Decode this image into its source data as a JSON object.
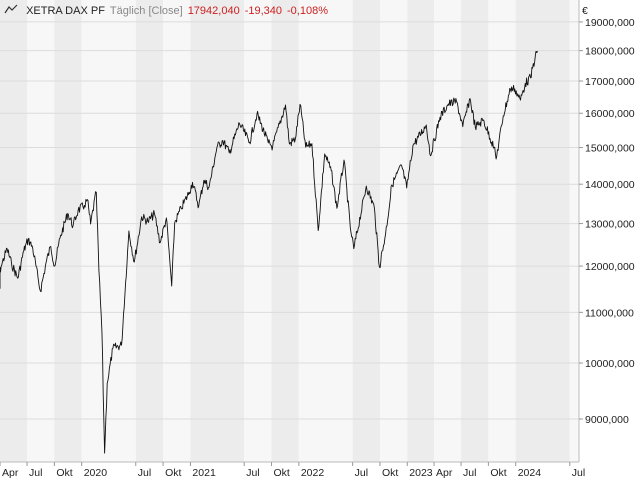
{
  "header": {
    "instrument": "XETRA DAX PF",
    "interval": "Täglich [Close]",
    "last": "17942,040",
    "change": "-19,340",
    "change_pct": "-0,108%"
  },
  "colors": {
    "line": "#111111",
    "negative": "#cc1f1f",
    "band_light": "#f7f7f7",
    "band_dark": "#ececec",
    "grid": "#dcdcdc",
    "axis_text": "#222222",
    "muted_text": "#888888"
  },
  "icons": {
    "chart_type": "line-chart-icon"
  },
  "chart_data": {
    "type": "line",
    "title": "XETRA DAX PF",
    "currency": "€",
    "y_scale": "log",
    "ylim": [
      8300,
      19800
    ],
    "xlim": [
      "2019-04-01",
      "2024-08-01"
    ],
    "y_ticks": [
      "9000,000",
      "10000,000",
      "11000,000",
      "12000,000",
      "13000,000",
      "14000,000",
      "15000,000",
      "16000,000",
      "17000,000",
      "18000,000",
      "19000,000"
    ],
    "y_tick_values": [
      9000,
      10000,
      11000,
      12000,
      13000,
      14000,
      15000,
      16000,
      17000,
      18000,
      19000
    ],
    "x_ticks": [
      {
        "label": "Apr",
        "date": "2019-04-01"
      },
      {
        "label": "Jul",
        "date": "2019-07-01"
      },
      {
        "label": "Okt",
        "date": "2019-10-01"
      },
      {
        "label": "2020",
        "date": "2020-01-01"
      },
      {
        "label": "Jul",
        "date": "2020-07-01"
      },
      {
        "label": "Okt",
        "date": "2020-10-01"
      },
      {
        "label": "2021",
        "date": "2021-01-01"
      },
      {
        "label": "Jul",
        "date": "2021-07-01"
      },
      {
        "label": "Okt",
        "date": "2021-10-01"
      },
      {
        "label": "2022",
        "date": "2022-01-01"
      },
      {
        "label": "Jul",
        "date": "2022-07-01"
      },
      {
        "label": "Okt",
        "date": "2022-10-01"
      },
      {
        "label": "2023",
        "date": "2023-01-01"
      },
      {
        "label": "Apr",
        "date": "2023-04-01"
      },
      {
        "label": "Jul",
        "date": "2023-07-01"
      },
      {
        "label": "Okt",
        "date": "2023-10-01"
      },
      {
        "label": "2024",
        "date": "2024-01-01"
      },
      {
        "label": "Jul",
        "date": "2024-07-01"
      }
    ],
    "series": [
      {
        "values": [
          [
            "2019-03-15",
            11500
          ],
          [
            "2019-04-05",
            12000
          ],
          [
            "2019-04-25",
            12400
          ],
          [
            "2019-05-10",
            12050
          ],
          [
            "2019-05-31",
            11730
          ],
          [
            "2019-06-20",
            12350
          ],
          [
            "2019-07-05",
            12620
          ],
          [
            "2019-07-20",
            12420
          ],
          [
            "2019-08-09",
            11650
          ],
          [
            "2019-08-15",
            11450
          ],
          [
            "2019-09-05",
            12130
          ],
          [
            "2019-09-19",
            12450
          ],
          [
            "2019-10-02",
            12000
          ],
          [
            "2019-10-20",
            12650
          ],
          [
            "2019-11-15",
            13250
          ],
          [
            "2019-12-03",
            12950
          ],
          [
            "2019-12-20",
            13330
          ],
          [
            "2020-01-10",
            13450
          ],
          [
            "2020-01-20",
            13600
          ],
          [
            "2020-01-31",
            12990
          ],
          [
            "2020-02-19",
            13790
          ],
          [
            "2020-02-28",
            11900
          ],
          [
            "2020-03-09",
            10620
          ],
          [
            "2020-03-18",
            8440
          ],
          [
            "2020-03-27",
            9630
          ],
          [
            "2020-04-15",
            10280
          ],
          [
            "2020-05-14",
            10340
          ],
          [
            "2020-06-08",
            12820
          ],
          [
            "2020-06-26",
            12090
          ],
          [
            "2020-07-21",
            13170
          ],
          [
            "2020-08-11",
            13050
          ],
          [
            "2020-09-02",
            13240
          ],
          [
            "2020-09-21",
            12540
          ],
          [
            "2020-10-12",
            13140
          ],
          [
            "2020-10-30",
            11560
          ],
          [
            "2020-11-09",
            13020
          ],
          [
            "2020-12-01",
            13380
          ],
          [
            "2020-12-28",
            13790
          ],
          [
            "2021-01-08",
            14050
          ],
          [
            "2021-01-29",
            13430
          ],
          [
            "2021-02-15",
            14100
          ],
          [
            "2021-03-05",
            13920
          ],
          [
            "2021-03-31",
            15000
          ],
          [
            "2021-04-20",
            15200
          ],
          [
            "2021-05-12",
            14850
          ],
          [
            "2021-06-15",
            15700
          ],
          [
            "2021-07-19",
            15150
          ],
          [
            "2021-08-13",
            15980
          ],
          [
            "2021-09-20",
            15130
          ],
          [
            "2021-10-05",
            15030
          ],
          [
            "2021-11-17",
            16250
          ],
          [
            "2021-11-30",
            15100
          ],
          [
            "2021-12-20",
            15240
          ],
          [
            "2022-01-05",
            16270
          ],
          [
            "2022-01-24",
            15010
          ],
          [
            "2022-02-14",
            15110
          ],
          [
            "2022-03-07",
            12830
          ],
          [
            "2022-03-29",
            14820
          ],
          [
            "2022-04-20",
            14360
          ],
          [
            "2022-05-09",
            13380
          ],
          [
            "2022-06-02",
            14650
          ],
          [
            "2022-06-23",
            12900
          ],
          [
            "2022-07-05",
            12400
          ],
          [
            "2022-08-16",
            13950
          ],
          [
            "2022-09-12",
            13400
          ],
          [
            "2022-09-29",
            11980
          ],
          [
            "2022-10-20",
            12750
          ],
          [
            "2022-11-10",
            13980
          ],
          [
            "2022-12-13",
            14500
          ],
          [
            "2022-12-30",
            13900
          ],
          [
            "2023-01-20",
            15050
          ],
          [
            "2023-03-06",
            15650
          ],
          [
            "2023-03-20",
            14770
          ],
          [
            "2023-04-21",
            15880
          ],
          [
            "2023-05-19",
            16280
          ],
          [
            "2023-06-16",
            16350
          ],
          [
            "2023-07-07",
            15600
          ],
          [
            "2023-07-31",
            16450
          ],
          [
            "2023-08-18",
            15580
          ],
          [
            "2023-09-14",
            15800
          ],
          [
            "2023-10-20",
            15000
          ],
          [
            "2023-10-27",
            14680
          ],
          [
            "2023-11-20",
            15920
          ],
          [
            "2023-12-14",
            16750
          ],
          [
            "2023-12-29",
            16750
          ],
          [
            "2024-01-17",
            16400
          ],
          [
            "2024-02-02",
            16920
          ],
          [
            "2024-02-20",
            17100
          ],
          [
            "2024-03-07",
            17820
          ],
          [
            "2024-03-15",
            17942
          ]
        ]
      }
    ]
  }
}
